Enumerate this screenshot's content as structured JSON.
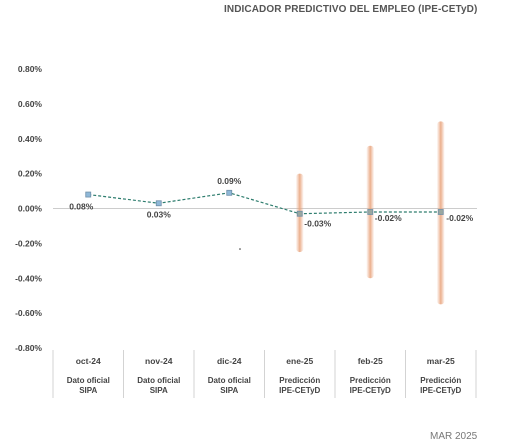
{
  "title": "INDICADOR PREDICTIVO DEL EMPLEO (IPE-CETyD)",
  "footer": "MAR 2025",
  "chart_data": {
    "type": "line",
    "title": "INDICADOR PREDICTIVO DEL EMPLEO (IPE-CETyD)",
    "ylim": [
      -0.8,
      0.8
    ],
    "yticks": [
      "0.80%",
      "0.60%",
      "0.40%",
      "0.20%",
      "0.00%",
      "-0.20%",
      "-0.40%",
      "-0.60%",
      "-0.80%"
    ],
    "ytick_values": [
      0.8,
      0.6,
      0.4,
      0.2,
      0.0,
      -0.2,
      -0.4,
      -0.6,
      -0.8
    ],
    "categories": [
      "oct-24",
      "nov-24",
      "dic-24",
      "ene-25",
      "feb-25",
      "mar-25"
    ],
    "category_sublabels": [
      [
        "Dato oficial",
        "SIPA"
      ],
      [
        "Dato oficial",
        "SIPA"
      ],
      [
        "Dato oficial",
        "SIPA"
      ],
      [
        "Predicción",
        "IPE-CETyD"
      ],
      [
        "Predicción",
        "IPE-CETyD"
      ],
      [
        "Predicción",
        "IPE-CETyD"
      ]
    ],
    "values": [
      0.08,
      0.03,
      0.09,
      -0.03,
      -0.02,
      -0.02
    ],
    "data_labels": [
      "0.08%",
      "0.03%",
      "0.09%",
      "-0.03%",
      "-0.02%",
      "-0.02%"
    ],
    "intervals": [
      null,
      null,
      null,
      [
        -0.25,
        0.2
      ],
      [
        -0.4,
        0.36
      ],
      [
        -0.55,
        0.5
      ]
    ],
    "grid": false,
    "colors": {
      "line": "#2e7d6e",
      "marker_fill": "#8fb8d8",
      "marker_stroke": "#6f8fa8",
      "band": "#e8a27a",
      "zero": "#cccccc",
      "text": "#444444"
    }
  }
}
